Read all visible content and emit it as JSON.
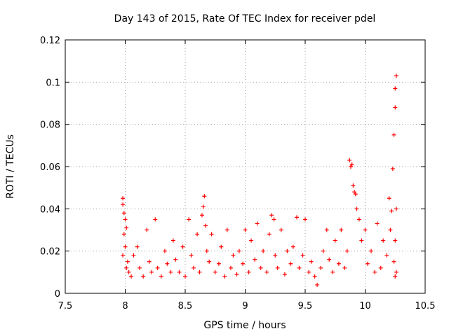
{
  "chart_data": {
    "type": "scatter",
    "title": "Day 143 of 2015, Rate Of TEC Index for receiver pdel",
    "xlabel": "GPS time / hours",
    "ylabel": "ROTI / TECUs",
    "xlim": [
      7.5,
      10.5
    ],
    "ylim": [
      0,
      0.12
    ],
    "xticks": [
      7.5,
      8,
      8.5,
      9,
      9.5,
      10,
      10.5
    ],
    "xtick_labels": [
      "7.5",
      "8",
      "8.5",
      "9",
      "9.5",
      "10",
      "10.5"
    ],
    "yticks": [
      0,
      0.02,
      0.04,
      0.06,
      0.08,
      0.1,
      0.12
    ],
    "ytick_labels": [
      "0",
      "0.02",
      "0.04",
      "0.06",
      "0.08",
      "0.1",
      "0.12"
    ],
    "grid": true,
    "marker": "+",
    "color": "#ff0000",
    "series": [
      {
        "name": "ROTI",
        "x": [
          7.98,
          7.98,
          7.99,
          8.0,
          8.01,
          7.99,
          8.0,
          7.98,
          8.02,
          8.01,
          8.03,
          8.05,
          8.07,
          8.1,
          8.12,
          8.15,
          8.18,
          8.2,
          8.22,
          8.25,
          8.27,
          8.3,
          8.33,
          8.35,
          8.38,
          8.4,
          8.42,
          8.45,
          8.48,
          8.5,
          8.53,
          8.55,
          8.57,
          8.6,
          8.62,
          8.64,
          8.65,
          8.66,
          8.67,
          8.68,
          8.7,
          8.72,
          8.75,
          8.78,
          8.8,
          8.83,
          8.85,
          8.88,
          8.9,
          8.93,
          8.95,
          8.98,
          9.0,
          9.03,
          9.05,
          9.08,
          9.1,
          9.13,
          9.15,
          9.18,
          9.2,
          9.22,
          9.24,
          9.25,
          9.27,
          9.3,
          9.33,
          9.35,
          9.38,
          9.4,
          9.43,
          9.45,
          9.48,
          9.5,
          9.53,
          9.55,
          9.58,
          9.6,
          9.63,
          9.65,
          9.68,
          9.7,
          9.73,
          9.75,
          9.78,
          9.8,
          9.83,
          9.85,
          9.87,
          9.88,
          9.89,
          9.9,
          9.91,
          9.92,
          9.93,
          9.95,
          9.97,
          10.0,
          10.02,
          10.05,
          10.08,
          10.1,
          10.13,
          10.15,
          10.18,
          10.2,
          10.21,
          10.22,
          10.23,
          10.24,
          10.25,
          10.25,
          10.26,
          10.26,
          10.25,
          10.24,
          10.26,
          10.25
        ],
        "y": [
          0.045,
          0.042,
          0.038,
          0.035,
          0.031,
          0.028,
          0.022,
          0.018,
          0.015,
          0.012,
          0.01,
          0.008,
          0.018,
          0.022,
          0.012,
          0.008,
          0.03,
          0.015,
          0.01,
          0.035,
          0.012,
          0.008,
          0.02,
          0.014,
          0.01,
          0.025,
          0.016,
          0.01,
          0.022,
          0.008,
          0.035,
          0.018,
          0.012,
          0.028,
          0.01,
          0.037,
          0.041,
          0.046,
          0.032,
          0.02,
          0.015,
          0.028,
          0.01,
          0.014,
          0.022,
          0.008,
          0.03,
          0.012,
          0.018,
          0.009,
          0.02,
          0.014,
          0.03,
          0.01,
          0.025,
          0.016,
          0.033,
          0.012,
          0.02,
          0.01,
          0.028,
          0.037,
          0.035,
          0.018,
          0.012,
          0.03,
          0.009,
          0.02,
          0.014,
          0.022,
          0.036,
          0.012,
          0.018,
          0.035,
          0.01,
          0.015,
          0.008,
          0.004,
          0.012,
          0.02,
          0.03,
          0.016,
          0.01,
          0.025,
          0.014,
          0.03,
          0.012,
          0.02,
          0.063,
          0.06,
          0.061,
          0.051,
          0.048,
          0.047,
          0.04,
          0.035,
          0.025,
          0.03,
          0.014,
          0.02,
          0.01,
          0.033,
          0.012,
          0.025,
          0.018,
          0.045,
          0.03,
          0.039,
          0.059,
          0.075,
          0.088,
          0.097,
          0.103,
          0.04,
          0.025,
          0.015,
          0.01,
          0.008
        ]
      }
    ]
  }
}
